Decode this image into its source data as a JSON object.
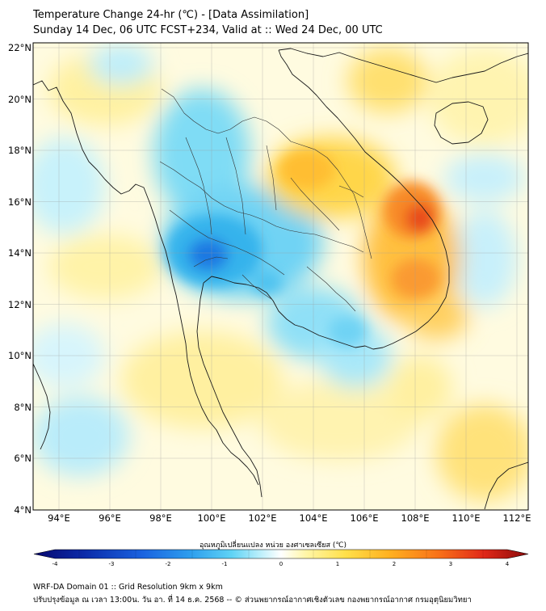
{
  "title": {
    "line1": "Temperature Change 24-hr (℃) - [Data Assimilation]",
    "line2": "Sunday 14 Dec, 06 UTC FCST+234, Valid at :: Wed 24 Dec, 00 UTC"
  },
  "map": {
    "lat_labels": [
      "22°N",
      "20°N",
      "18°N",
      "16°N",
      "14°N",
      "12°N",
      "10°N",
      "8°N",
      "6°N",
      "4°N"
    ],
    "lon_labels": [
      "94°E",
      "96°E",
      "98°E",
      "100°E",
      "102°E",
      "104°E",
      "106°E",
      "108°E",
      "110°E",
      "112°E"
    ],
    "lat_range": [
      4,
      22.2
    ],
    "lon_range": [
      93,
      112.5
    ]
  },
  "colorbar": {
    "title": "อุณหภูมิเปลี่ยนแปลง หน่วย องศาเซลเซียส (℃)",
    "ticks": [
      "-4",
      "-3",
      "-2",
      "-1",
      "0",
      "1",
      "2",
      "3",
      "4"
    ],
    "range": [
      -4,
      4
    ],
    "colors": [
      "#08086e",
      "#0b2aa8",
      "#1a63e0",
      "#2fa0ee",
      "#5fd3f5",
      "#bff0fb",
      "#ffffff",
      "#fff6a8",
      "#ffe04a",
      "#ffb020",
      "#f87018",
      "#e02818",
      "#8a0a0a"
    ]
  },
  "footer": {
    "line1": "WRF-DA Domain 01 :: Grid Resolution 9km x 9km",
    "line2": "ปรับปรุงข้อมูล ณ เวลา 13:00น. วัน อา. ที่ 14 ธ.ค. 2568 -- © ส่วนพยากรณ์อากาศเชิงตัวเลข กองพยากรณ์อากาศ กรมอุตุนิยมวิทยา"
  }
}
